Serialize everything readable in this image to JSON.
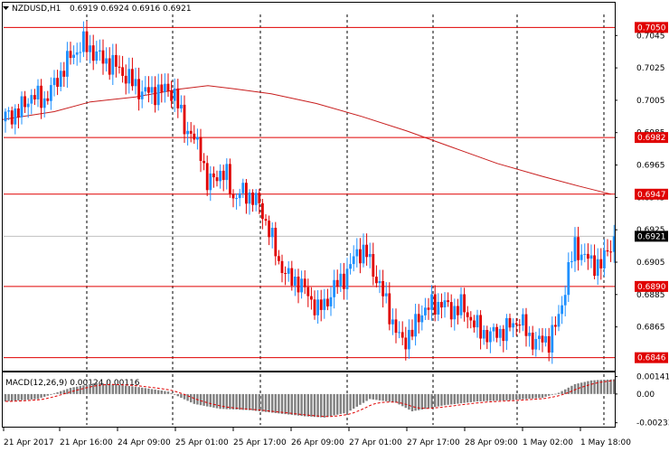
{
  "chart_data": {
    "type": "candlestick",
    "header": {
      "symbol": "NZDUSD,H1",
      "ohlc": "0.6919 0.6924 0.6916 0.6921"
    },
    "price_axis": {
      "range": [
        0.6838,
        0.7058
      ],
      "ticks": [
        "0.7045",
        "0.7025",
        "0.7005",
        "0.6985",
        "0.6965",
        "0.6945",
        "0.6925",
        "0.6905",
        "0.6885",
        "0.6865"
      ]
    },
    "levels": [
      {
        "label": "0.7050",
        "value": 0.705
      },
      {
        "label": "0.6982",
        "value": 0.6982
      },
      {
        "label": "0.6947",
        "value": 0.6947
      },
      {
        "label": "0.6890",
        "value": 0.689
      },
      {
        "label": "0.6846",
        "value": 0.6846
      }
    ],
    "current_price": {
      "label": "0.6921",
      "value": 0.6921
    },
    "time_labels": [
      "21 Apr 2017",
      "21 Apr 16:00",
      "24 Apr 09:00",
      "25 Apr 01:00",
      "25 Apr 17:00",
      "26 Apr 09:00",
      "27 Apr 01:00",
      "27 Apr 17:00",
      "28 Apr 09:00",
      "1 May 02:00",
      "1 May 18:00"
    ],
    "price_keypoints": [
      {
        "i": 0,
        "p": 0.6995
      },
      {
        "i": 4,
        "p": 0.6998
      },
      {
        "i": 8,
        "p": 0.7008
      },
      {
        "i": 12,
        "p": 0.7005
      },
      {
        "i": 16,
        "p": 0.7018
      },
      {
        "i": 20,
        "p": 0.7032
      },
      {
        "i": 24,
        "p": 0.704
      },
      {
        "i": 27,
        "p": 0.7035
      },
      {
        "i": 30,
        "p": 0.703
      },
      {
        "i": 34,
        "p": 0.7026
      },
      {
        "i": 38,
        "p": 0.7018
      },
      {
        "i": 42,
        "p": 0.701
      },
      {
        "i": 46,
        "p": 0.701
      },
      {
        "i": 50,
        "p": 0.7012
      },
      {
        "i": 52,
        "p": 0.7008
      },
      {
        "i": 55,
        "p": 0.699
      },
      {
        "i": 58,
        "p": 0.698
      },
      {
        "i": 60,
        "p": 0.6975
      },
      {
        "i": 62,
        "p": 0.6952
      },
      {
        "i": 65,
        "p": 0.696
      },
      {
        "i": 68,
        "p": 0.6958
      },
      {
        "i": 70,
        "p": 0.6945
      },
      {
        "i": 73,
        "p": 0.6948
      },
      {
        "i": 76,
        "p": 0.6945
      },
      {
        "i": 78,
        "p": 0.694
      },
      {
        "i": 81,
        "p": 0.6925
      },
      {
        "i": 84,
        "p": 0.6905
      },
      {
        "i": 87,
        "p": 0.6895
      },
      {
        "i": 90,
        "p": 0.6893
      },
      {
        "i": 93,
        "p": 0.6885
      },
      {
        "i": 96,
        "p": 0.6875
      },
      {
        "i": 99,
        "p": 0.6882
      },
      {
        "i": 102,
        "p": 0.6892
      },
      {
        "i": 105,
        "p": 0.6898
      },
      {
        "i": 108,
        "p": 0.6912
      },
      {
        "i": 111,
        "p": 0.691
      },
      {
        "i": 114,
        "p": 0.6895
      },
      {
        "i": 117,
        "p": 0.688
      },
      {
        "i": 120,
        "p": 0.6862
      },
      {
        "i": 122,
        "p": 0.6856
      },
      {
        "i": 125,
        "p": 0.6862
      },
      {
        "i": 128,
        "p": 0.6875
      },
      {
        "i": 131,
        "p": 0.6878
      },
      {
        "i": 134,
        "p": 0.688
      },
      {
        "i": 137,
        "p": 0.6875
      },
      {
        "i": 140,
        "p": 0.6878
      },
      {
        "i": 143,
        "p": 0.687
      },
      {
        "i": 146,
        "p": 0.6862
      },
      {
        "i": 149,
        "p": 0.686
      },
      {
        "i": 152,
        "p": 0.6862
      },
      {
        "i": 155,
        "p": 0.6865
      },
      {
        "i": 158,
        "p": 0.687
      },
      {
        "i": 161,
        "p": 0.6858
      },
      {
        "i": 164,
        "p": 0.6856
      },
      {
        "i": 167,
        "p": 0.6857
      },
      {
        "i": 170,
        "p": 0.687
      },
      {
        "i": 173,
        "p": 0.69
      },
      {
        "i": 175,
        "p": 0.6915
      },
      {
        "i": 177,
        "p": 0.691
      },
      {
        "i": 180,
        "p": 0.6905
      },
      {
        "i": 183,
        "p": 0.6903
      },
      {
        "i": 185,
        "p": 0.6912
      },
      {
        "i": 187,
        "p": 0.6921
      }
    ],
    "moving_average": [
      {
        "x": 2,
        "p": 0.6993
      },
      {
        "x": 60,
        "p": 0.6998
      },
      {
        "x": 100,
        "p": 0.7004
      },
      {
        "x": 150,
        "p": 0.7007
      },
      {
        "x": 200,
        "p": 0.7012
      },
      {
        "x": 230,
        "p": 0.7014
      },
      {
        "x": 260,
        "p": 0.7012
      },
      {
        "x": 300,
        "p": 0.7009
      },
      {
        "x": 350,
        "p": 0.7003
      },
      {
        "x": 400,
        "p": 0.6995
      },
      {
        "x": 450,
        "p": 0.6986
      },
      {
        "x": 500,
        "p": 0.6976
      },
      {
        "x": 550,
        "p": 0.6966
      },
      {
        "x": 600,
        "p": 0.6958
      },
      {
        "x": 640,
        "p": 0.6952
      },
      {
        "x": 676,
        "p": 0.6947
      }
    ],
    "macd": {
      "label": "MACD(12,26,9) 0.00124 0.00116",
      "range": [
        -0.0025,
        0.0016
      ],
      "ticks": [
        "0.00141",
        "0.00",
        "-0.00233"
      ],
      "keypoints": [
        {
          "i": 0,
          "v": -0.0006
        },
        {
          "i": 10,
          "v": -0.0004
        },
        {
          "i": 20,
          "v": 0.0005
        },
        {
          "i": 28,
          "v": 0.0009
        },
        {
          "i": 40,
          "v": 0.0006
        },
        {
          "i": 50,
          "v": 0.0002
        },
        {
          "i": 58,
          "v": -0.0008
        },
        {
          "i": 66,
          "v": -0.0012
        },
        {
          "i": 75,
          "v": -0.0013
        },
        {
          "i": 85,
          "v": -0.0016
        },
        {
          "i": 92,
          "v": -0.0018
        },
        {
          "i": 98,
          "v": -0.0019
        },
        {
          "i": 105,
          "v": -0.0015
        },
        {
          "i": 112,
          "v": -0.0004
        },
        {
          "i": 120,
          "v": -0.0007
        },
        {
          "i": 125,
          "v": -0.0014
        },
        {
          "i": 135,
          "v": -0.0009
        },
        {
          "i": 145,
          "v": -0.0006
        },
        {
          "i": 155,
          "v": -0.0005
        },
        {
          "i": 165,
          "v": -0.0003
        },
        {
          "i": 170,
          "v": 0.0001
        },
        {
          "i": 175,
          "v": 0.0008
        },
        {
          "i": 180,
          "v": 0.0011
        },
        {
          "i": 187,
          "v": 0.0012
        }
      ]
    },
    "colors": {
      "bull": "#1e90ff",
      "bear": "#e00000",
      "level_line": "#e00000",
      "moving_average": "#c81e1e",
      "macd_bar": "#808080",
      "macd_signal": "#e00000",
      "grid": "#000000",
      "current_line": "#c0c0c0",
      "axis": "#000000"
    }
  }
}
